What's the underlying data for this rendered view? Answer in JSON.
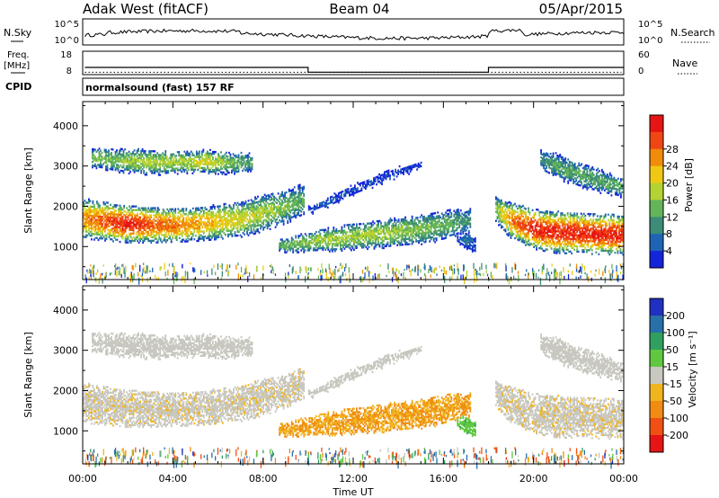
{
  "header": {
    "station": "Adak West (fitACF)",
    "beam": "Beam 04",
    "date": "05/Apr/2015"
  },
  "nsky_panel": {
    "left_label": "N.Sky",
    "right_label": "N.Search",
    "ticks_left": [
      "10^5",
      "10^0"
    ],
    "ticks_right": [
      "10^5",
      "10^0"
    ]
  },
  "freq_panel": {
    "left_label_line1": "Freq.",
    "left_label_line2": "[MHz]",
    "right_label": "Nave",
    "ticks_left": [
      "18",
      "8"
    ],
    "ticks_right": [
      "60",
      "0"
    ],
    "freq_steps": [
      {
        "t_start": 0.1,
        "t_end": 10.0,
        "mhz": 10.6
      },
      {
        "t_start": 10.0,
        "t_end": 18.0,
        "mhz": 8.1
      },
      {
        "t_start": 18.0,
        "t_end": 24.0,
        "mhz": 10.6
      }
    ],
    "nave_level": 6
  },
  "cpid": {
    "label": "CPID",
    "program": "normalsound (fast) 157 RF"
  },
  "x_axis": {
    "label": "Time UT",
    "ticks": [
      "00:00",
      "04:00",
      "08:00",
      "12:00",
      "16:00",
      "20:00",
      "00:00"
    ],
    "range_hours": [
      0,
      24
    ]
  },
  "power_panel": {
    "ylabel": "Slant Range [km]",
    "yticks": [
      "1000",
      "2000",
      "3000",
      "4000"
    ],
    "colorbar_title": "Power [dB]",
    "colorbar_ticks": [
      "4",
      "8",
      "12",
      "16",
      "20",
      "24",
      "28"
    ],
    "colors": [
      "#1424d8",
      "#1e64b4",
      "#3c8c78",
      "#64b45a",
      "#b4d232",
      "#f0c814",
      "#f08c0a",
      "#f04614",
      "#e61414"
    ]
  },
  "velocity_panel": {
    "ylabel": "Slant Range [km]",
    "yticks": [
      "1000",
      "2000",
      "3000",
      "4000"
    ],
    "colorbar_title": "Velocity [m s⁻¹]",
    "colorbar_ticks": [
      "200",
      "100",
      "50",
      "15",
      "-15",
      "-50",
      "-100",
      "-200"
    ],
    "colors": [
      "#2030c0",
      "#2870a8",
      "#30a060",
      "#60c840",
      "#c8c8c0",
      "#f0b41e",
      "#f08c14",
      "#f05014",
      "#e61414"
    ]
  },
  "chart_data": {
    "type": "heatmap",
    "x_unit": "hours UT",
    "y_unit": "km",
    "ylim": [
      180,
      4600
    ],
    "xlim": [
      0,
      24
    ],
    "echo_bands": [
      {
        "t": [
          0.0,
          1.0,
          2.0,
          3.0,
          4.0,
          5.0,
          6.0,
          7.0,
          8.0,
          9.0,
          9.8
        ],
        "center": [
          1700,
          1630,
          1560,
          1540,
          1540,
          1560,
          1620,
          1680,
          1840,
          2000,
          2170
        ],
        "width": [
          500,
          480,
          460,
          440,
          420,
          420,
          430,
          440,
          460,
          420,
          400
        ],
        "peak_db": [
          22,
          26,
          28,
          26,
          24,
          22,
          20,
          18,
          16,
          14,
          12
        ],
        "velocity": -5
      },
      {
        "t": [
          0.4,
          1.5,
          2.5,
          3.5,
          4.5,
          5.5,
          6.5,
          7.5
        ],
        "center": [
          3220,
          3150,
          3110,
          3080,
          3100,
          3120,
          3070,
          3100
        ],
        "width": [
          250,
          300,
          320,
          300,
          280,
          300,
          280,
          220
        ],
        "peak_db": [
          14,
          14,
          16,
          16,
          16,
          18,
          14,
          12
        ],
        "velocity": 0
      },
      {
        "t": [
          8.7,
          9.5,
          10.5,
          11.5,
          12.5,
          13.5,
          14.5,
          15.5,
          16.5,
          17.2
        ],
        "center": [
          1020,
          1080,
          1150,
          1220,
          1280,
          1330,
          1400,
          1480,
          1580,
          1660
        ],
        "width": [
          160,
          220,
          280,
          320,
          340,
          360,
          380,
          380,
          360,
          300
        ],
        "peak_db": [
          12,
          14,
          16,
          16,
          16,
          16,
          14,
          14,
          12,
          10
        ],
        "velocity": -50
      },
      {
        "t": [
          10.0,
          11.0,
          12.0,
          13.0,
          14.0,
          15.0
        ],
        "center": [
          1900,
          2150,
          2430,
          2650,
          2860,
          3030
        ],
        "width": [
          120,
          140,
          150,
          150,
          140,
          120
        ],
        "peak_db": [
          6,
          6,
          5,
          5,
          5,
          4
        ],
        "velocity": 0
      },
      {
        "t": [
          18.3,
          19.0,
          20.0,
          21.0,
          22.0,
          23.0,
          23.95
        ],
        "center": [
          1900,
          1650,
          1440,
          1360,
          1330,
          1310,
          1300
        ],
        "width": [
          350,
          450,
          500,
          520,
          500,
          500,
          500
        ],
        "peak_db": [
          14,
          24,
          28,
          28,
          28,
          28,
          28
        ],
        "velocity": -5
      },
      {
        "t": [
          20.3,
          21.0,
          22.0,
          23.0,
          23.9
        ],
        "center": [
          3150,
          3000,
          2800,
          2620,
          2470
        ],
        "width": [
          250,
          320,
          320,
          300,
          250
        ],
        "peak_db": [
          10,
          12,
          12,
          12,
          12
        ],
        "velocity": 0
      },
      {
        "t": [
          16.6,
          17.0,
          17.4
        ],
        "center": [
          1200,
          1150,
          1050
        ],
        "width": [
          150,
          250,
          250
        ],
        "peak_db": [
          6,
          8,
          6
        ],
        "velocity": 40
      }
    ],
    "nsky_baseline": 0.35,
    "series": [
      {
        "name": "Power",
        "unit": "dB",
        "range": [
          3,
          30
        ]
      },
      {
        "name": "Velocity",
        "unit": "m/s",
        "range": [
          -200,
          200
        ]
      }
    ]
  }
}
